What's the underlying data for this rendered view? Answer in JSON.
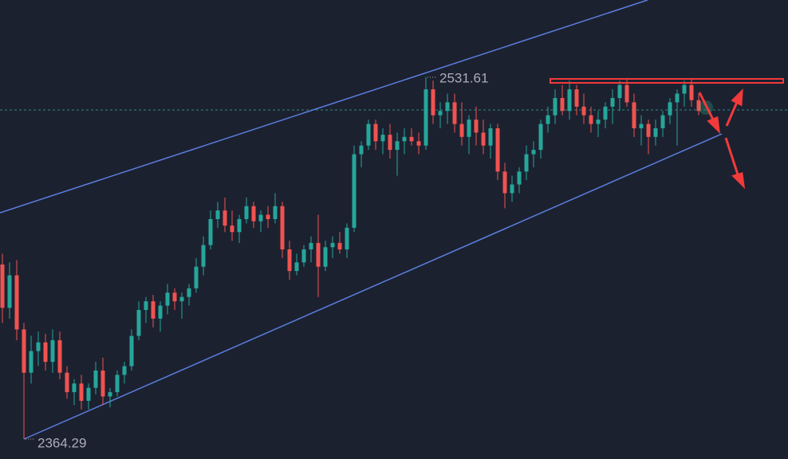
{
  "chart_data": {
    "type": "candlestick",
    "up_color": "#26a69a",
    "down_color": "#ef5350",
    "ylim": [
      2355.1,
      2567.3
    ],
    "max_label": 2531.61,
    "min_label": 2364.29,
    "ohlc": [
      [
        2445,
        2450,
        2418,
        2425
      ],
      [
        2425,
        2446,
        2420,
        2440
      ],
      [
        2440,
        2447,
        2410,
        2415
      ],
      [
        2415,
        2418,
        2364.29,
        2395
      ],
      [
        2395,
        2412,
        2390,
        2405
      ],
      [
        2405,
        2414,
        2398,
        2409
      ],
      [
        2409,
        2413,
        2396,
        2400
      ],
      [
        2400,
        2415,
        2395,
        2410
      ],
      [
        2410,
        2414,
        2392,
        2395
      ],
      [
        2395,
        2398,
        2383,
        2386
      ],
      [
        2386,
        2392,
        2380,
        2390
      ],
      [
        2390,
        2394,
        2378,
        2382
      ],
      [
        2382,
        2390,
        2378,
        2388
      ],
      [
        2388,
        2400,
        2385,
        2396
      ],
      [
        2396,
        2402,
        2380,
        2384
      ],
      [
        2384,
        2388,
        2379,
        2386
      ],
      [
        2386,
        2396,
        2384,
        2394
      ],
      [
        2394,
        2400,
        2390,
        2398
      ],
      [
        2398,
        2415,
        2396,
        2412
      ],
      [
        2412,
        2428,
        2410,
        2424
      ],
      [
        2424,
        2430,
        2418,
        2428
      ],
      [
        2428,
        2431,
        2416,
        2420
      ],
      [
        2420,
        2428,
        2414,
        2426
      ],
      [
        2426,
        2436,
        2422,
        2432
      ],
      [
        2432,
        2434,
        2424,
        2428
      ],
      [
        2428,
        2432,
        2420,
        2430
      ],
      [
        2430,
        2436,
        2426,
        2434
      ],
      [
        2434,
        2448,
        2432,
        2444
      ],
      [
        2444,
        2458,
        2440,
        2454
      ],
      [
        2454,
        2470,
        2452,
        2466
      ],
      [
        2466,
        2474,
        2462,
        2470
      ],
      [
        2470,
        2476,
        2460,
        2463
      ],
      [
        2463,
        2470,
        2456,
        2460
      ],
      [
        2460,
        2468,
        2455,
        2466
      ],
      [
        2466,
        2476,
        2464,
        2472
      ],
      [
        2472,
        2474,
        2462,
        2465
      ],
      [
        2465,
        2470,
        2460,
        2468
      ],
      [
        2468,
        2472,
        2462,
        2466
      ],
      [
        2466,
        2478,
        2464,
        2472
      ],
      [
        2472,
        2474,
        2448,
        2452
      ],
      [
        2452,
        2456,
        2438,
        2442
      ],
      [
        2442,
        2450,
        2440,
        2446
      ],
      [
        2446,
        2454,
        2444,
        2452
      ],
      [
        2452,
        2458,
        2446,
        2455
      ],
      [
        2455,
        2468,
        2430,
        2444
      ],
      [
        2444,
        2456,
        2442,
        2453
      ],
      [
        2453,
        2458,
        2448,
        2455
      ],
      [
        2455,
        2460,
        2450,
        2452
      ],
      [
        2452,
        2464,
        2448,
        2462
      ],
      [
        2462,
        2500,
        2460,
        2496
      ],
      [
        2496,
        2502,
        2490,
        2500
      ],
      [
        2500,
        2512,
        2498,
        2510
      ],
      [
        2510,
        2512,
        2498,
        2502
      ],
      [
        2502,
        2508,
        2496,
        2505
      ],
      [
        2505,
        2510,
        2494,
        2498
      ],
      [
        2498,
        2506,
        2486,
        2502
      ],
      [
        2502,
        2508,
        2496,
        2504
      ],
      [
        2504,
        2508,
        2500,
        2502
      ],
      [
        2502,
        2506,
        2496,
        2500
      ],
      [
        2500,
        2531.61,
        2498,
        2526
      ],
      [
        2526,
        2530,
        2510,
        2514
      ],
      [
        2514,
        2520,
        2508,
        2516
      ],
      [
        2516,
        2524,
        2510,
        2520
      ],
      [
        2520,
        2524,
        2506,
        2510
      ],
      [
        2510,
        2520,
        2500,
        2504
      ],
      [
        2504,
        2514,
        2496,
        2512
      ],
      [
        2512,
        2518,
        2500,
        2506
      ],
      [
        2506,
        2512,
        2496,
        2500
      ],
      [
        2500,
        2510,
        2494,
        2508
      ],
      [
        2508,
        2510,
        2484,
        2488
      ],
      [
        2488,
        2492,
        2471,
        2478
      ],
      [
        2478,
        2486,
        2474,
        2482
      ],
      [
        2482,
        2490,
        2478,
        2488
      ],
      [
        2488,
        2500,
        2484,
        2496
      ],
      [
        2496,
        2502,
        2490,
        2498
      ],
      [
        2498,
        2512,
        2494,
        2510
      ],
      [
        2510,
        2518,
        2506,
        2514
      ],
      [
        2514,
        2526,
        2510,
        2522
      ],
      [
        2522,
        2528,
        2514,
        2516
      ],
      [
        2516,
        2530,
        2512,
        2526
      ],
      [
        2526,
        2528,
        2514,
        2518
      ],
      [
        2518,
        2524,
        2510,
        2514
      ],
      [
        2514,
        2518,
        2506,
        2510
      ],
      [
        2510,
        2516,
        2504,
        2512
      ],
      [
        2512,
        2520,
        2508,
        2518
      ],
      [
        2518,
        2526,
        2510,
        2522
      ],
      [
        2522,
        2530,
        2516,
        2528
      ],
      [
        2528,
        2531,
        2518,
        2520
      ],
      [
        2520,
        2524,
        2504,
        2508
      ],
      [
        2508,
        2514,
        2500,
        2510
      ],
      [
        2510,
        2512,
        2496,
        2504
      ],
      [
        2504,
        2512,
        2500,
        2508
      ],
      [
        2508,
        2516,
        2504,
        2514
      ],
      [
        2514,
        2522,
        2510,
        2520
      ],
      [
        2520,
        2526,
        2500,
        2524
      ],
      [
        2524,
        2530,
        2518,
        2528
      ],
      [
        2528,
        2531,
        2518,
        2521
      ],
      [
        2521,
        2524,
        2514,
        2516
      ]
    ]
  }
}
